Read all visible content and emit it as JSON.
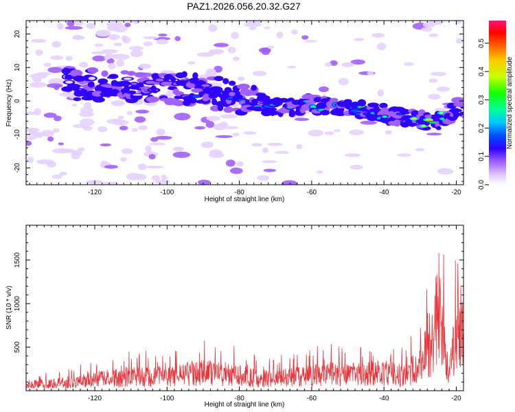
{
  "title": "PAZ1.2026.056.20.32.G27",
  "chart_data": [
    {
      "type": "heatmap",
      "id": "spectrogram",
      "xlabel": "Height of straight line (km)",
      "ylabel": "Frequency (Hz)",
      "xlim": [
        -139,
        -18
      ],
      "ylim": [
        -25,
        24
      ],
      "xticks": [
        -120,
        -100,
        -80,
        -60,
        -40,
        -20
      ],
      "yticks": [
        20,
        10,
        0,
        -10,
        -20
      ],
      "ridge": {
        "description": "main energy track (frequency vs height)",
        "x": [
          -121,
          -110,
          -100,
          -90,
          -80,
          -70,
          -60,
          -50,
          -40,
          -30,
          -25,
          -20
        ],
        "y": [
          5,
          4,
          4,
          3,
          1,
          -2,
          -1,
          -2,
          -4,
          -6,
          -6,
          -2
        ],
        "peak_amplitude": [
          0.1,
          0.15,
          0.12,
          0.2,
          0.3,
          0.25,
          0.3,
          0.35,
          0.3,
          0.45,
          0.55,
          0.3
        ]
      },
      "colorbar": {
        "label": "Normalized spectral amplitude",
        "ticks": [
          0.0,
          0.1,
          0.2,
          0.3,
          0.4,
          0.5
        ],
        "tick_labels": [
          "0.0",
          "0.1",
          "0.2",
          "0.3",
          "0.4",
          "0.5"
        ],
        "range": [
          0,
          0.58
        ],
        "colors": [
          "#ffffff",
          "#d6b8ff",
          "#7a00ff",
          "#0000ff",
          "#00c8ff",
          "#00ff00",
          "#c8ff00",
          "#ffa000",
          "#ff0000",
          "#ff1493"
        ]
      }
    },
    {
      "type": "line",
      "id": "snr",
      "xlabel": "Height of straight line (km)",
      "ylabel": "SNR (10 * v/v)",
      "xlim": [
        -139,
        -18
      ],
      "ylim": [
        0,
        1900
      ],
      "xticks": [
        -120,
        -100,
        -80,
        -60,
        -40,
        -20
      ],
      "yticks": [
        500,
        1000,
        1500
      ],
      "line_color": "#e8343a",
      "envelope": {
        "x": [
          -139,
          -130,
          -120,
          -110,
          -100,
          -95,
          -90,
          -85,
          -80,
          -75,
          -70,
          -65,
          -60,
          -55,
          -50,
          -45,
          -40,
          -35,
          -30,
          -28,
          -26,
          -25,
          -24,
          -22,
          -20,
          -18
        ],
        "y": [
          120,
          150,
          220,
          280,
          260,
          330,
          370,
          330,
          300,
          240,
          230,
          270,
          300,
          330,
          320,
          340,
          360,
          300,
          470,
          800,
          1200,
          1550,
          1150,
          250,
          1150,
          1100
        ]
      }
    }
  ]
}
